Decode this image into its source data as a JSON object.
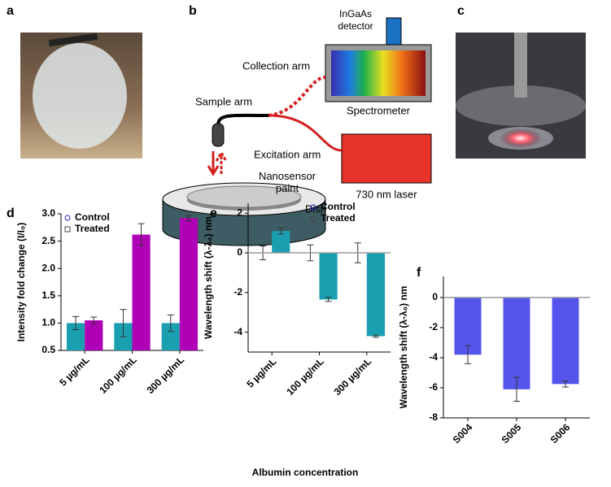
{
  "panels": [
    "a",
    "b",
    "c",
    "d",
    "e",
    "f"
  ],
  "diagram": {
    "detector": "InGaAs detector",
    "collection_arm": "Collection arm",
    "spectrometer": "Spectrometer",
    "sample_arm": "Sample arm",
    "excitation_arm": "Excitation arm",
    "laser": "730 nm laser",
    "paint": "Nanosensor paint",
    "dish": "Dish"
  },
  "shared_xlabel": "Albumin concentration",
  "chart_data": [
    {
      "type": "bar",
      "ylabel": "Intensity fold change (I/I₀)",
      "categories": [
        "5 µg/mL",
        "100 µg/mL",
        "300 µg/mL"
      ],
      "series": [
        {
          "name": "Control",
          "color": "#1a9fb0",
          "marker": "circle",
          "values": [
            1.0,
            1.0,
            1.0
          ],
          "errors": [
            0.12,
            0.25,
            0.15
          ]
        },
        {
          "name": "Treated",
          "color": "#b000b5",
          "marker": "square",
          "values": [
            1.05,
            2.62,
            2.92
          ],
          "errors": [
            0.06,
            0.2,
            0.05
          ]
        }
      ],
      "ylim": [
        0.5,
        3.0
      ],
      "yticks": [
        {
          "value": 0.5,
          "label": "0.5"
        },
        {
          "value": 1.0,
          "label": "1.0"
        },
        {
          "value": 1.5,
          "label": "1.5"
        },
        {
          "value": 2.0,
          "label": "2.0"
        },
        {
          "value": 2.5,
          "label": "2.5"
        },
        {
          "value": 3.0,
          "label": "3.0"
        }
      ],
      "legend": "upper left"
    },
    {
      "type": "bar",
      "ylabel": "Wavelength shift (λ-λ₀) nm",
      "categories": [
        "5 µg/mL",
        "100 µg/mL",
        "300 µg/mL"
      ],
      "series": [
        {
          "name": "Control",
          "color": "#1a9fb0",
          "marker": "circle",
          "values": [
            0,
            0,
            0
          ],
          "errors": [
            0.35,
            0.4,
            0.5
          ]
        },
        {
          "name": "Treated",
          "color": "#1a9fb0",
          "marker": "diamond",
          "values": [
            1.1,
            -2.35,
            -4.2
          ],
          "errors": [
            0.15,
            0.1,
            0.05
          ]
        }
      ],
      "ylim": [
        -5,
        2.5
      ],
      "yticks": [
        -4,
        -2,
        0,
        2
      ],
      "zero_line": true,
      "legend": "upper right"
    },
    {
      "type": "bar",
      "ylabel": "Wavelength shift (λ-λ₀) nm",
      "categories": [
        "S004",
        "S005",
        "S006"
      ],
      "color": "#5555ee",
      "values": [
        -3.8,
        -6.1,
        -5.75
      ],
      "errors": [
        0.6,
        0.8,
        0.2
      ],
      "ylim": [
        -8,
        1.4
      ],
      "yticks": [
        -8,
        -6,
        -4,
        -2,
        0
      ],
      "zero_line": true
    }
  ]
}
